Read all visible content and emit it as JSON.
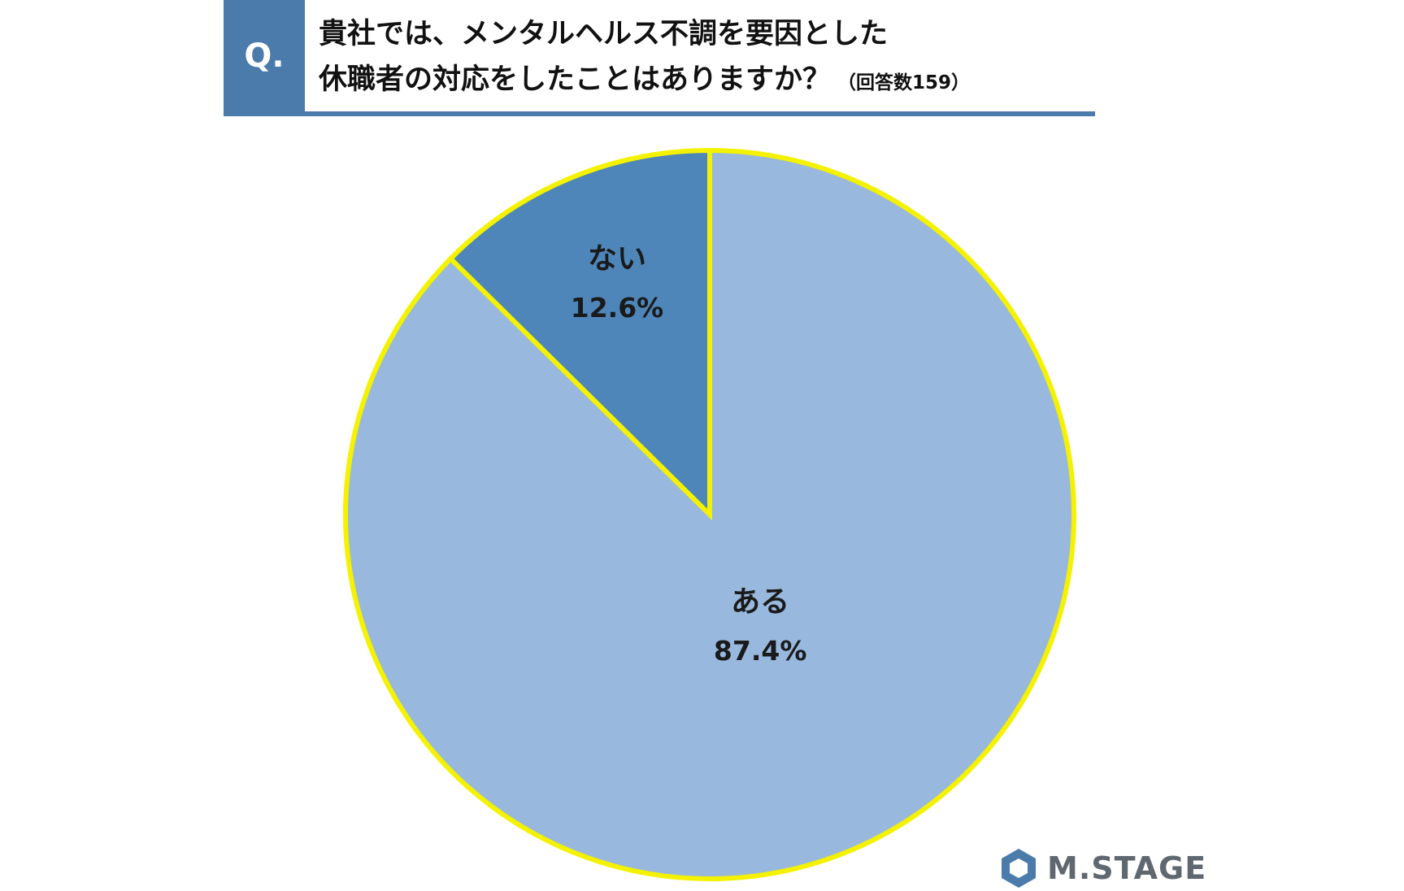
{
  "header": {
    "q_label": "Q.",
    "question_line1": "貴社では、メンタルヘルス不調を要因とした",
    "question_line2": "休職者の対応をしたことはありますか？",
    "respondents_note": "（回答数159）"
  },
  "chart_data": {
    "type": "pie",
    "title": "",
    "slices": [
      {
        "label": "ない",
        "value": 12.6,
        "value_label": "12.6%",
        "color": "#4f86ba"
      },
      {
        "label": "ある",
        "value": 87.4,
        "value_label": "87.4%",
        "color": "#98b8de"
      }
    ],
    "start": "12 o'clock",
    "direction": "counter-clockwise",
    "border_color": "#f4f200",
    "legend": "none"
  },
  "logo": {
    "text": "M.STAGE",
    "icon": "hexagon-logo-icon",
    "color": "#5f6770"
  }
}
